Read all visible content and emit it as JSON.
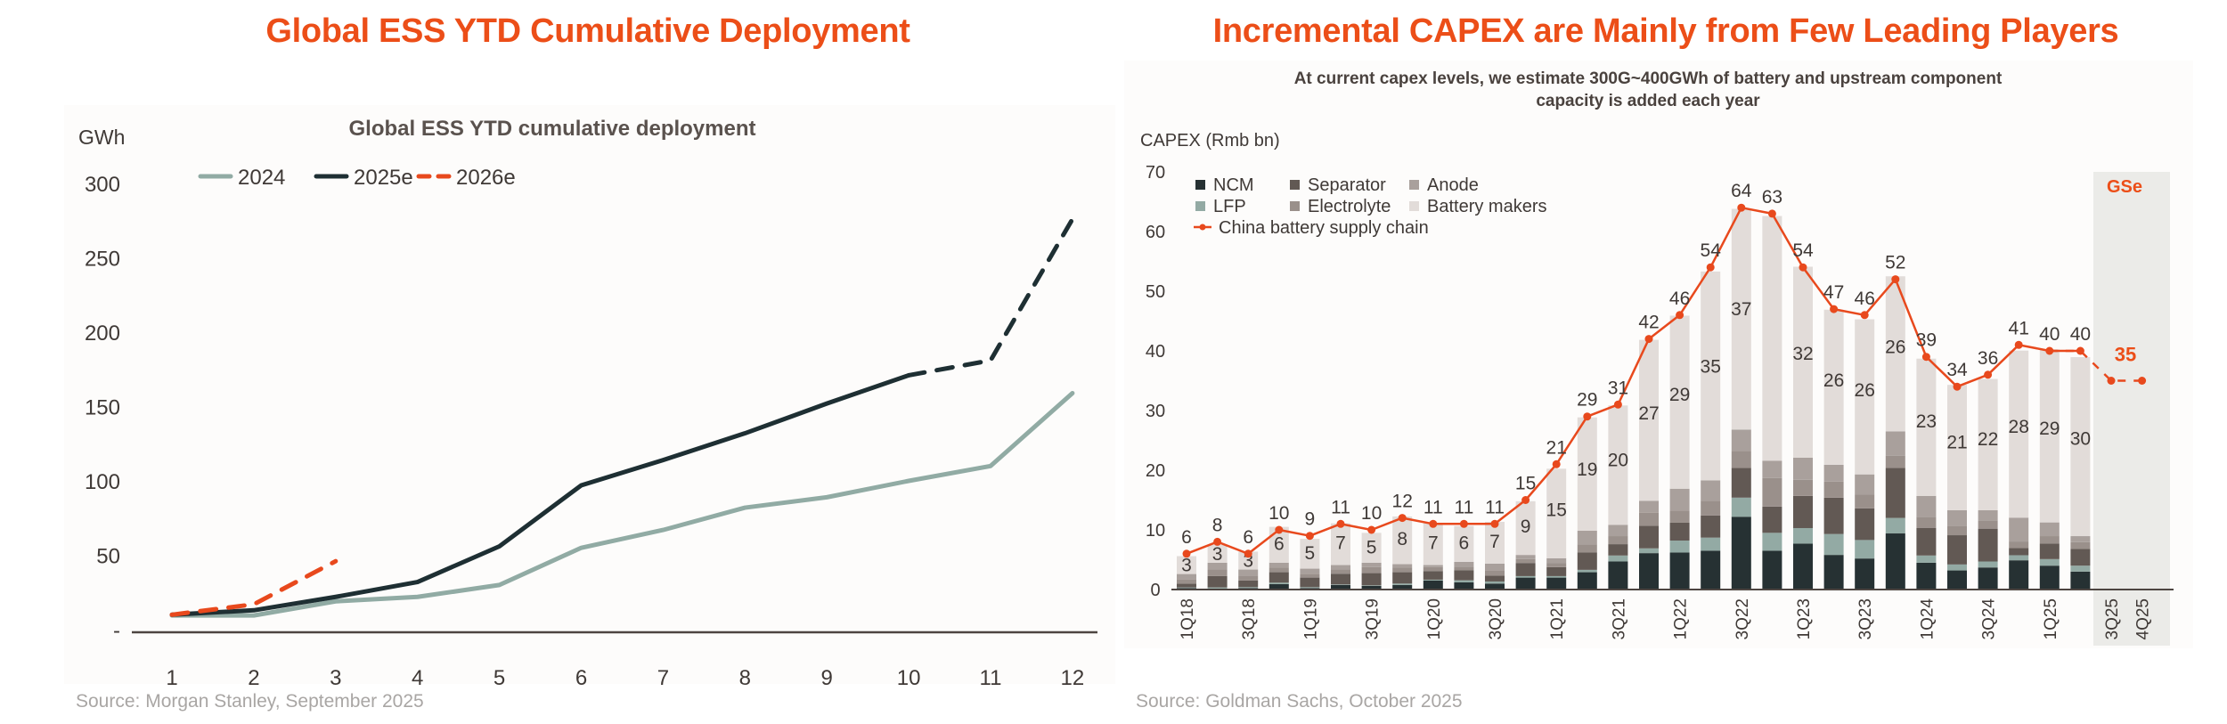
{
  "left_panel": {
    "heading": "Global ESS YTD Cumulative Deployment",
    "source": "Source: Morgan Stanley, September 2025"
  },
  "right_panel": {
    "heading": "Incremental CAPEX are Mainly from Few Leading Players",
    "source": "Source: Goldman Sachs, October 2025"
  },
  "colors": {
    "accent": "#ec4e18",
    "s2024": "#91aba4",
    "s2025": "#1e2f33",
    "s2026": "#e8491d",
    "ncm": "#263133",
    "lfp": "#93aaa4",
    "separator": "#625954",
    "electrolyte": "#9a908b",
    "anode": "#a9a09c",
    "battery": "#e2dcd9",
    "chain": "#e8491d",
    "gse_bg": "#ebebe8"
  },
  "chart_data": [
    {
      "type": "line",
      "title": "Global ESS YTD cumulative deployment",
      "xlabel": "",
      "ylabel": "GWh",
      "x": [
        1,
        2,
        3,
        4,
        5,
        6,
        7,
        8,
        9,
        10,
        11,
        12
      ],
      "ylim": [
        0,
        300
      ],
      "yticks": [
        0,
        50,
        100,
        150,
        200,
        250,
        300
      ],
      "ytick_labels": [
        "-",
        "50",
        "100",
        "150",
        "200",
        "250",
        "300"
      ],
      "grid": false,
      "legend": "top-left",
      "series": [
        {
          "name": "2024",
          "style": "solid",
          "values": [
            9.5,
            9.5,
            19,
            22,
            30,
            55,
            67,
            82,
            89,
            100,
            110,
            159
          ]
        },
        {
          "name": "2025e",
          "style": "solid-then-dashed",
          "dashed_from_x": 10,
          "values": [
            10,
            13,
            22,
            32,
            56,
            97,
            114,
            132,
            152,
            171,
            181,
            276
          ]
        },
        {
          "name": "2026e",
          "style": "dashed",
          "values": [
            10,
            17,
            46,
            null,
            null,
            null,
            null,
            null,
            null,
            null,
            null,
            null
          ]
        }
      ]
    },
    {
      "type": "bar",
      "stacked": true,
      "title": "At current capex levels, we estimate 300G~400GWh of battery and upstream component capacity is added each year",
      "subtitle_lines": [
        "At current capex levels, we estimate 300G~400GWh of battery and upstream component",
        "capacity is added each year"
      ],
      "ylabel": "CAPEX (Rmb bn)",
      "xlabel": "",
      "ylim": [
        0,
        70
      ],
      "yticks": [
        0,
        10,
        20,
        30,
        40,
        50,
        60,
        70
      ],
      "grid": false,
      "legend": "top-left",
      "categories": [
        "1Q18",
        "2Q18",
        "3Q18",
        "4Q18",
        "1Q19",
        "2Q19",
        "3Q19",
        "4Q19",
        "1Q20",
        "2Q20",
        "3Q20",
        "4Q20",
        "1Q21",
        "2Q21",
        "3Q21",
        "4Q21",
        "1Q22",
        "2Q22",
        "3Q22",
        "4Q22",
        "1Q23",
        "2Q23",
        "3Q23",
        "4Q23",
        "1Q24",
        "2Q24",
        "3Q24",
        "4Q24",
        "1Q25",
        "2Q25",
        "3Q25",
        "4Q25"
      ],
      "tick_labels": [
        "1Q18",
        "",
        "3Q18",
        "",
        "1Q19",
        "",
        "3Q19",
        "",
        "1Q20",
        "",
        "3Q20",
        "",
        "1Q21",
        "",
        "3Q21",
        "",
        "1Q22",
        "",
        "3Q22",
        "",
        "1Q23",
        "",
        "3Q23",
        "",
        "1Q24",
        "",
        "3Q24",
        "",
        "1Q25",
        "",
        "3Q25",
        "4Q25"
      ],
      "legend_entries": [
        "NCM",
        "Separator",
        "Anode",
        "LFP",
        "Electrolyte",
        "Battery makers",
        "China battery supply chain"
      ],
      "series": [
        {
          "name": "NCM",
          "values": [
            0.25,
            0.15,
            0.25,
            0.9,
            0.25,
            0.75,
            0.6,
            0.75,
            1.5,
            1.2,
            1.0,
            2.0,
            2.0,
            2.9,
            4.7,
            6.1,
            6.2,
            6.5,
            12.2,
            6.5,
            7.7,
            5.8,
            5.2,
            9.4,
            4.5,
            3.2,
            3.7,
            4.9,
            4.0,
            3.0,
            null,
            null
          ]
        },
        {
          "name": "LFP",
          "values": [
            0.1,
            0.2,
            0.15,
            0.25,
            0.15,
            0.1,
            0.1,
            0.25,
            0.15,
            0.35,
            0.35,
            0.25,
            0.25,
            0.4,
            1.0,
            0.8,
            2.0,
            2.2,
            3.2,
            3.0,
            2.6,
            3.5,
            3.1,
            2.6,
            1.2,
            1.0,
            1.0,
            0.85,
            1.1,
            1.0,
            null,
            null
          ]
        },
        {
          "name": "Separator",
          "values": [
            0.65,
            1.9,
            1.1,
            1.75,
            1.6,
            1.8,
            2.05,
            1.9,
            1.45,
            1.7,
            1.0,
            2.2,
            1.5,
            2.9,
            1.9,
            3.8,
            3.0,
            3.7,
            5.0,
            4.4,
            5.4,
            6.1,
            5.3,
            8.4,
            4.6,
            4.9,
            5.5,
            1.2,
            2.6,
            2.8,
            null,
            null
          ]
        },
        {
          "name": "Electrolyte",
          "values": [
            0.65,
            1.1,
            0.85,
            0.75,
            0.65,
            0.7,
            1.0,
            0.75,
            0.65,
            0.6,
            0.9,
            0.65,
            0.65,
            1.35,
            1.35,
            2.15,
            2.0,
            2.5,
            2.8,
            4.8,
            2.7,
            2.7,
            2.3,
            2.0,
            1.9,
            1.5,
            1.4,
            1.1,
            1.25,
            1.15,
            null,
            null
          ]
        },
        {
          "name": "Anode",
          "values": [
            0.95,
            1.15,
            1.0,
            0.85,
            0.85,
            0.75,
            0.75,
            0.6,
            0.35,
            0.8,
            1.1,
            0.7,
            0.85,
            2.3,
            1.9,
            2.0,
            3.7,
            3.4,
            3.6,
            2.9,
            3.7,
            2.8,
            3.4,
            4.1,
            3.5,
            2.7,
            1.7,
            4.0,
            2.3,
            1.0,
            null,
            null
          ]
        },
        {
          "name": "Battery makers",
          "values": [
            3,
            3,
            3,
            6,
            5,
            7,
            5,
            8,
            7,
            6,
            7,
            9,
            15,
            19,
            20,
            27,
            29,
            35,
            37,
            41,
            32,
            26,
            26,
            26,
            23,
            21,
            22,
            28,
            29,
            30,
            null,
            null
          ],
          "labels": [
            3,
            3,
            3,
            6,
            5,
            7,
            5,
            8,
            7,
            6,
            7,
            9,
            15,
            19,
            20,
            27,
            29,
            35,
            37,
            null,
            32,
            26,
            26,
            26,
            23,
            21,
            22,
            28,
            29,
            30,
            null,
            null
          ]
        },
        {
          "name": "China battery supply chain",
          "type": "line",
          "values": [
            6,
            8,
            6,
            10,
            9,
            11,
            10,
            12,
            11,
            11,
            11,
            15,
            21,
            29,
            31,
            42,
            46,
            54,
            64,
            63,
            54,
            47,
            46,
            52,
            39,
            34,
            36,
            41,
            40,
            40,
            35,
            35
          ],
          "labels": [
            6,
            8,
            6,
            10,
            9,
            11,
            10,
            12,
            11,
            11,
            11,
            15,
            21,
            29,
            31,
            42,
            46,
            54,
            64,
            63,
            54,
            47,
            46,
            52,
            39,
            34,
            36,
            41,
            40,
            40,
            35,
            null
          ],
          "estimate_from": "3Q25"
        }
      ],
      "annotations": [
        {
          "text": "GSe",
          "applies_to": [
            "3Q25",
            "4Q25"
          ]
        },
        {
          "text": "35",
          "applies_to": "3Q25",
          "highlight": true
        }
      ]
    }
  ]
}
